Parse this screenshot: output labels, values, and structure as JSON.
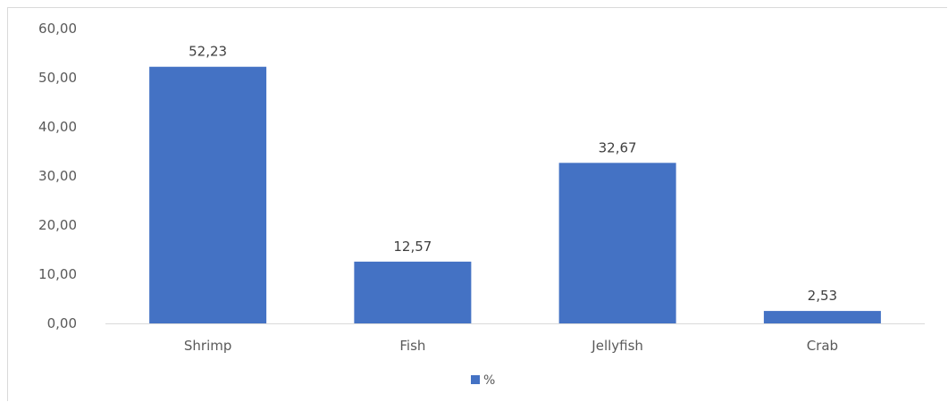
{
  "chart_data": {
    "type": "bar",
    "categories": [
      "Shrimp",
      "Fish",
      "Jellyfish",
      "Crab"
    ],
    "series": [
      {
        "name": "%",
        "values": [
          52.23,
          12.57,
          32.67,
          2.53
        ],
        "value_labels": [
          "52,23",
          "12,57",
          "32,67",
          "2,53"
        ],
        "color": "#4472c4"
      }
    ],
    "ylim": [
      0,
      60
    ],
    "y_ticks": [
      0,
      10,
      20,
      30,
      40,
      50,
      60
    ],
    "y_tick_labels": [
      "0,00",
      "10,00",
      "20,00",
      "30,00",
      "40,00",
      "50,00",
      "60,00"
    ],
    "grid": false,
    "legend_position": "bottom",
    "axis_color": "#d9d9d9"
  }
}
